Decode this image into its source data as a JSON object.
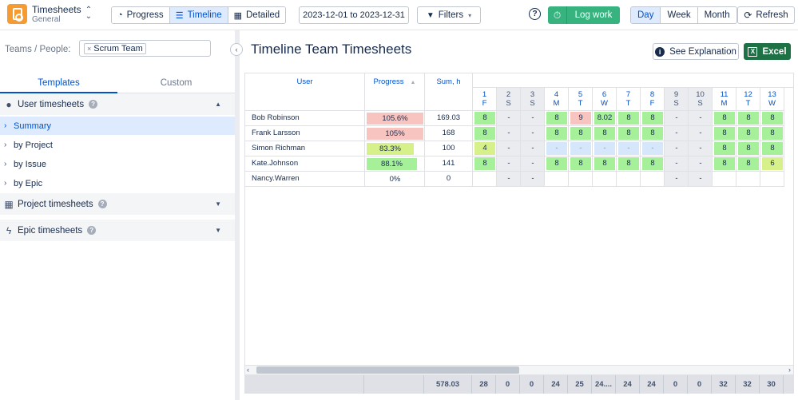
{
  "app": {
    "title": "Timesheets",
    "subtitle": "General",
    "switch_icon": "chevron-updown-icon"
  },
  "toolbar": {
    "views": [
      {
        "label": "Progress",
        "icon": "progress-icon",
        "active": false
      },
      {
        "label": "Timeline",
        "icon": "list-icon",
        "active": true
      },
      {
        "label": "Detailed",
        "icon": "grid-icon",
        "active": false
      }
    ],
    "date_range": "2023-12-01 to 2023-12-31",
    "filters_label": "Filters",
    "help_icon": "help-icon",
    "log_work_label": "Log work",
    "periods": [
      {
        "label": "Day",
        "active": true
      },
      {
        "label": "Week",
        "active": false
      },
      {
        "label": "Month",
        "active": false
      }
    ],
    "refresh_label": "Refresh"
  },
  "sidebar": {
    "teams_label": "Teams / People:",
    "teams_chip": "Scrum Team",
    "tabs": [
      {
        "label": "Templates",
        "active": true
      },
      {
        "label": "Custom",
        "active": false
      }
    ],
    "groups": [
      {
        "label": "User timesheets",
        "icon": "user-icon",
        "expanded": true,
        "items": [
          {
            "label": "Summary",
            "selected": true
          },
          {
            "label": "by Project",
            "selected": false
          },
          {
            "label": "by Issue",
            "selected": false
          },
          {
            "label": "by Epic",
            "selected": false
          }
        ]
      },
      {
        "label": "Project timesheets",
        "icon": "dashboard-icon",
        "expanded": false,
        "items": []
      },
      {
        "label": "Epic timesheets",
        "icon": "lightning-icon",
        "expanded": false,
        "items": []
      }
    ]
  },
  "main": {
    "title": "Timeline Team Timesheets",
    "explanation_label": "See Explanation",
    "excel_label": "Excel"
  },
  "table": {
    "headers": {
      "user": "User",
      "progress": "Progress",
      "sum": "Sum, h"
    },
    "days": [
      {
        "d": "1",
        "w": "F",
        "weekend": false
      },
      {
        "d": "2",
        "w": "S",
        "weekend": true
      },
      {
        "d": "3",
        "w": "S",
        "weekend": true
      },
      {
        "d": "4",
        "w": "M",
        "weekend": false
      },
      {
        "d": "5",
        "w": "T",
        "weekend": false
      },
      {
        "d": "6",
        "w": "W",
        "weekend": false
      },
      {
        "d": "7",
        "w": "T",
        "weekend": false
      },
      {
        "d": "8",
        "w": "F",
        "weekend": false
      },
      {
        "d": "9",
        "w": "S",
        "weekend": true
      },
      {
        "d": "10",
        "w": "S",
        "weekend": true
      },
      {
        "d": "11",
        "w": "M",
        "weekend": false
      },
      {
        "d": "12",
        "w": "T",
        "weekend": false
      },
      {
        "d": "13",
        "w": "W",
        "weekend": false
      }
    ],
    "rows": [
      {
        "user": "Bob Robinson",
        "progress": "105.6%",
        "progress_value": 1.056,
        "progress_color": "#f8c4c0",
        "sum": "169.03",
        "cells": [
          [
            "8",
            "#a6f09a"
          ],
          [
            "-",
            ""
          ],
          [
            "-",
            ""
          ],
          [
            "8",
            "#a6f09a"
          ],
          [
            "9",
            "#f8c4c0"
          ],
          [
            "8.02",
            "#a6f09a"
          ],
          [
            "8",
            "#a6f09a"
          ],
          [
            "8",
            "#a6f09a"
          ],
          [
            "-",
            ""
          ],
          [
            "-",
            ""
          ],
          [
            "8",
            "#a6f09a"
          ],
          [
            "8",
            "#a6f09a"
          ],
          [
            "8",
            "#a6f09a"
          ]
        ]
      },
      {
        "user": "Frank Larsson",
        "progress": "105%",
        "progress_value": 1.05,
        "progress_color": "#f8c4c0",
        "sum": "168",
        "cells": [
          [
            "8",
            "#a6f09a"
          ],
          [
            "-",
            ""
          ],
          [
            "-",
            ""
          ],
          [
            "8",
            "#a6f09a"
          ],
          [
            "8",
            "#a6f09a"
          ],
          [
            "8",
            "#a6f09a"
          ],
          [
            "8",
            "#a6f09a"
          ],
          [
            "8",
            "#a6f09a"
          ],
          [
            "-",
            ""
          ],
          [
            "-",
            ""
          ],
          [
            "8",
            "#a6f09a"
          ],
          [
            "8",
            "#a6f09a"
          ],
          [
            "8",
            "#a6f09a"
          ]
        ]
      },
      {
        "user": "Simon Richman",
        "progress": "83.3%",
        "progress_value": 0.833,
        "progress_color": "#d6f08a",
        "sum": "100",
        "cells": [
          [
            "4",
            "#d6f08a"
          ],
          [
            "-",
            ""
          ],
          [
            "-",
            ""
          ],
          [
            "-",
            "#d6e6fb"
          ],
          [
            "-",
            "#d6e6fb"
          ],
          [
            "-",
            "#d6e6fb"
          ],
          [
            "-",
            "#d6e6fb"
          ],
          [
            "-",
            "#d6e6fb"
          ],
          [
            "-",
            ""
          ],
          [
            "-",
            ""
          ],
          [
            "8",
            "#a6f09a"
          ],
          [
            "8",
            "#a6f09a"
          ],
          [
            "8",
            "#a6f09a"
          ]
        ]
      },
      {
        "user": "Kate.Johnson",
        "progress": "88.1%",
        "progress_value": 0.881,
        "progress_color": "#a6f09a",
        "sum": "141",
        "cells": [
          [
            "8",
            "#a6f09a"
          ],
          [
            "-",
            ""
          ],
          [
            "-",
            ""
          ],
          [
            "8",
            "#a6f09a"
          ],
          [
            "8",
            "#a6f09a"
          ],
          [
            "8",
            "#a6f09a"
          ],
          [
            "8",
            "#a6f09a"
          ],
          [
            "8",
            "#a6f09a"
          ],
          [
            "-",
            ""
          ],
          [
            "-",
            ""
          ],
          [
            "8",
            "#a6f09a"
          ],
          [
            "8",
            "#a6f09a"
          ],
          [
            "6",
            "#d6f08a"
          ]
        ]
      },
      {
        "user": "Nancy.Warren",
        "progress": "0%",
        "progress_value": 0,
        "progress_color": "",
        "sum": "0",
        "cells": [
          [
            "",
            ""
          ],
          [
            "-",
            ""
          ],
          [
            "-",
            ""
          ],
          [
            "",
            ""
          ],
          [
            "",
            ""
          ],
          [
            "",
            ""
          ],
          [
            "",
            ""
          ],
          [
            "",
            ""
          ],
          [
            "-",
            ""
          ],
          [
            "-",
            ""
          ],
          [
            "",
            ""
          ],
          [
            "",
            ""
          ],
          [
            "",
            ""
          ]
        ]
      }
    ],
    "totals": {
      "sum": "578.03",
      "days": [
        "28",
        "0",
        "0",
        "24",
        "25",
        "24....",
        "24",
        "24",
        "0",
        "0",
        "32",
        "32",
        "30"
      ]
    }
  }
}
